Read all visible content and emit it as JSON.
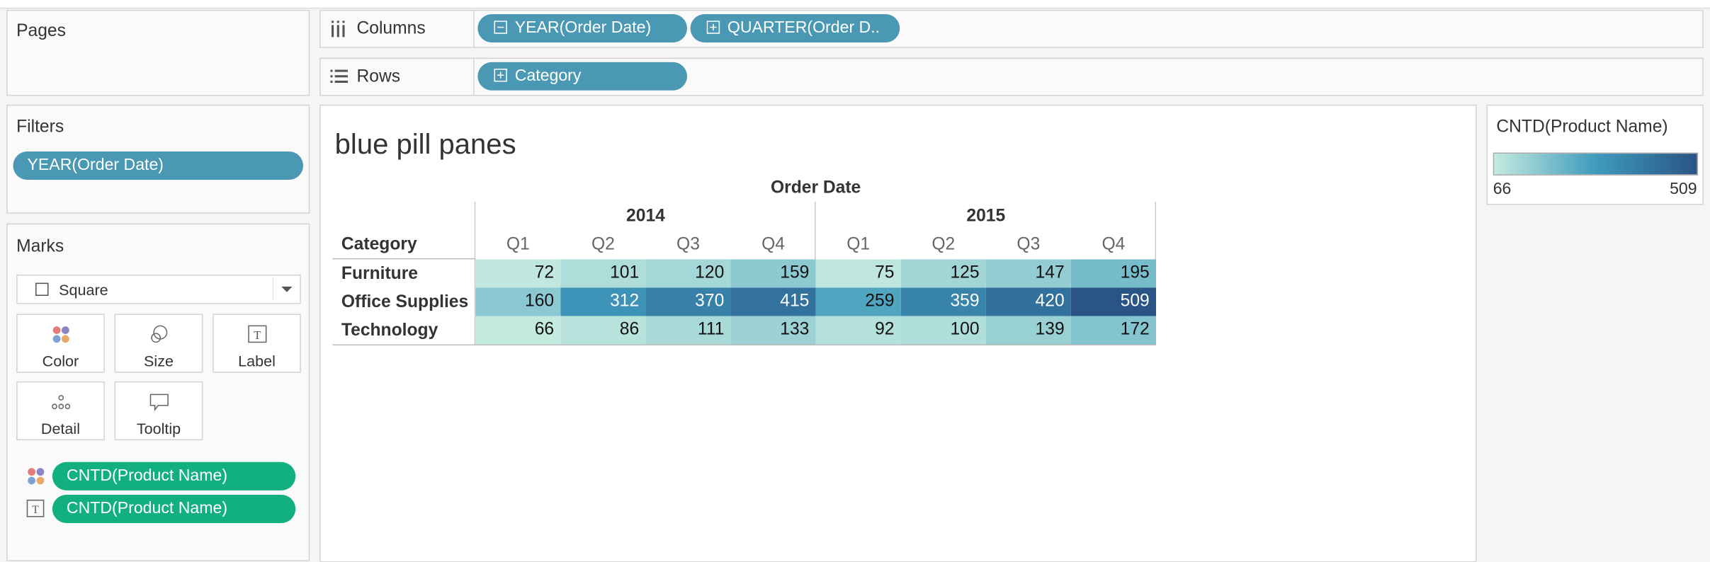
{
  "shelves": {
    "pages": "Pages",
    "filters": {
      "title": "Filters",
      "pills": [
        "YEAR(Order Date)"
      ]
    },
    "columns": {
      "label": "Columns",
      "pills": [
        "YEAR(Order Date)",
        "QUARTER(Order D.."
      ]
    },
    "rows": {
      "label": "Rows",
      "pills": [
        "Category"
      ]
    }
  },
  "marks": {
    "title": "Marks",
    "type": "Square",
    "buttons": [
      "Color",
      "Size",
      "Label",
      "Detail",
      "Tooltip"
    ],
    "pills": [
      "CNTD(Product Name)",
      "CNTD(Product Name)"
    ]
  },
  "view": {
    "title": "blue pill panes",
    "column_header": "Order Date",
    "row_header": "Category",
    "years": [
      "2014",
      "2015"
    ],
    "quarters": [
      [
        "Q1",
        "Q2",
        "Q3",
        "Q4"
      ],
      [
        "Q1",
        "Q2",
        "Q3",
        "Q4"
      ]
    ],
    "categories": [
      "Furniture",
      "Office Supplies",
      "Technology"
    ],
    "table": [
      [
        72,
        101,
        120,
        159,
        75,
        125,
        147,
        195
      ],
      [
        160,
        312,
        370,
        415,
        259,
        359,
        420,
        509
      ],
      [
        66,
        86,
        111,
        133,
        92,
        100,
        139,
        172
      ]
    ]
  },
  "legend": {
    "title": "CNTD(Product Name)",
    "min": 66,
    "max": 509,
    "colors": [
      "#c4eadf",
      "#3f9bbd",
      "#2a5486"
    ]
  }
}
